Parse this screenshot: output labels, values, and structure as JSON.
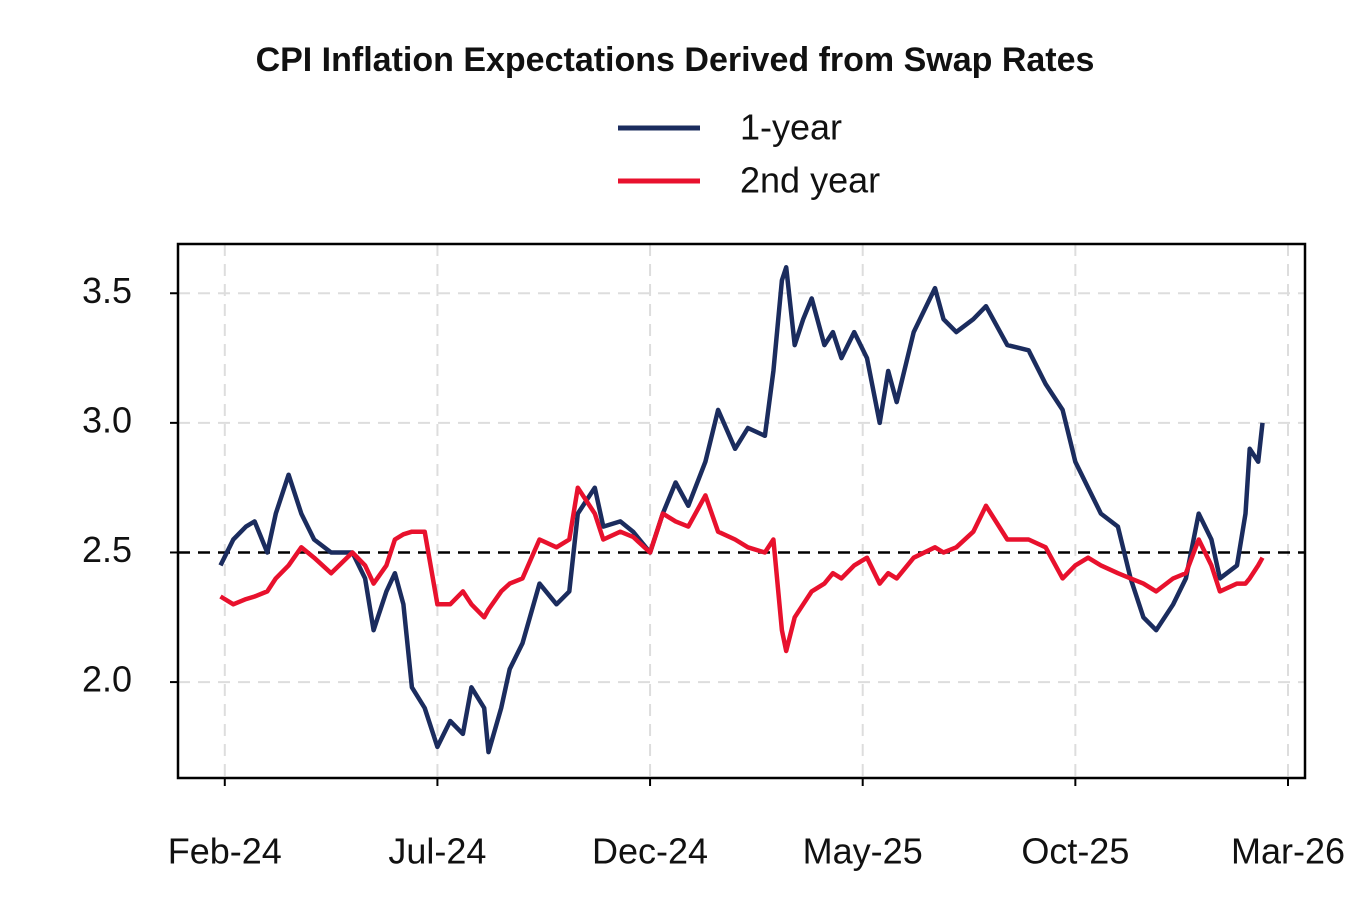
{
  "chart_data": {
    "type": "line",
    "title": "CPI Inflation Expectations Derived from Swap Rates",
    "x": [
      -0.1,
      0.2,
      0.5,
      0.7,
      1.0,
      1.2,
      1.5,
      1.8,
      2.1,
      2.5,
      3.0,
      3.3,
      3.5,
      3.8,
      4.0,
      4.2,
      4.4,
      4.7,
      5.0,
      5.3,
      5.6,
      5.8,
      6.1,
      6.2,
      6.5,
      6.7,
      7.0,
      7.4,
      7.8,
      8.1,
      8.3,
      8.7,
      8.9,
      9.3,
      9.6,
      10.0,
      10.3,
      10.6,
      10.9,
      11.3,
      11.6,
      12.0,
      12.3,
      12.7,
      12.9,
      13.1,
      13.2,
      13.4,
      13.6,
      13.8,
      14.1,
      14.3,
      14.5,
      14.8,
      15.1,
      15.4,
      15.6,
      15.8,
      16.2,
      16.7,
      16.9,
      17.2,
      17.6,
      17.9,
      18.4,
      18.9,
      19.3,
      19.7,
      20.0,
      20.3,
      20.6,
      21.0,
      21.3,
      21.6,
      21.9,
      22.3,
      22.6,
      22.9,
      23.2,
      23.4,
      23.8,
      24.0,
      24.1,
      24.3,
      24.4
    ],
    "series": [
      {
        "name": "1-year",
        "color": "#1b2c5e",
        "values": [
          2.45,
          2.55,
          2.6,
          2.62,
          2.5,
          2.65,
          2.8,
          2.65,
          2.55,
          2.5,
          2.5,
          2.4,
          2.2,
          2.35,
          2.42,
          2.3,
          1.98,
          1.9,
          1.75,
          1.85,
          1.8,
          1.98,
          1.9,
          1.73,
          1.9,
          2.05,
          2.15,
          2.38,
          2.3,
          2.35,
          2.65,
          2.75,
          2.6,
          2.62,
          2.58,
          2.5,
          2.65,
          2.77,
          2.68,
          2.85,
          3.05,
          2.9,
          2.98,
          2.95,
          3.2,
          3.55,
          3.6,
          3.3,
          3.4,
          3.48,
          3.3,
          3.35,
          3.25,
          3.35,
          3.25,
          3.0,
          3.2,
          3.08,
          3.35,
          3.52,
          3.4,
          3.35,
          3.4,
          3.45,
          3.3,
          3.28,
          3.15,
          3.05,
          2.85,
          2.75,
          2.65,
          2.6,
          2.4,
          2.25,
          2.2,
          2.3,
          2.4,
          2.65,
          2.55,
          2.4,
          2.45,
          2.65,
          2.9,
          2.85,
          3.0
        ]
      },
      {
        "name": "2nd year",
        "color": "#e8112d",
        "values": [
          2.33,
          2.3,
          2.32,
          2.33,
          2.35,
          2.4,
          2.45,
          2.52,
          2.48,
          2.42,
          2.5,
          2.45,
          2.38,
          2.45,
          2.55,
          2.57,
          2.58,
          2.58,
          2.3,
          2.3,
          2.35,
          2.3,
          2.25,
          2.28,
          2.35,
          2.38,
          2.4,
          2.55,
          2.52,
          2.55,
          2.75,
          2.65,
          2.55,
          2.58,
          2.56,
          2.5,
          2.65,
          2.62,
          2.6,
          2.72,
          2.58,
          2.55,
          2.52,
          2.5,
          2.55,
          2.2,
          2.12,
          2.25,
          2.3,
          2.35,
          2.38,
          2.42,
          2.4,
          2.45,
          2.48,
          2.38,
          2.42,
          2.4,
          2.48,
          2.52,
          2.5,
          2.52,
          2.58,
          2.68,
          2.55,
          2.55,
          2.52,
          2.4,
          2.45,
          2.48,
          2.45,
          2.42,
          2.4,
          2.38,
          2.35,
          2.4,
          2.42,
          2.55,
          2.45,
          2.35,
          2.38,
          2.38,
          2.4,
          2.45,
          2.48
        ]
      }
    ],
    "xlim": [
      -1.1,
      25.4
    ],
    "xticks": [
      {
        "value": 0,
        "label": "Feb-24"
      },
      {
        "value": 5,
        "label": "Jul-24"
      },
      {
        "value": 10,
        "label": "Dec-24"
      },
      {
        "value": 15,
        "label": "May-25"
      },
      {
        "value": 20,
        "label": "Oct-25"
      },
      {
        "value": 25,
        "label": "Mar-26"
      }
    ],
    "ylim": [
      1.63,
      3.69
    ],
    "yticks": [
      {
        "value": 2,
        "label": "2.0"
      },
      2.5,
      {
        "value": 3,
        "label": "3.0"
      },
      3.5
    ],
    "reference_line": 2.5,
    "grid": true,
    "legend": "top"
  }
}
